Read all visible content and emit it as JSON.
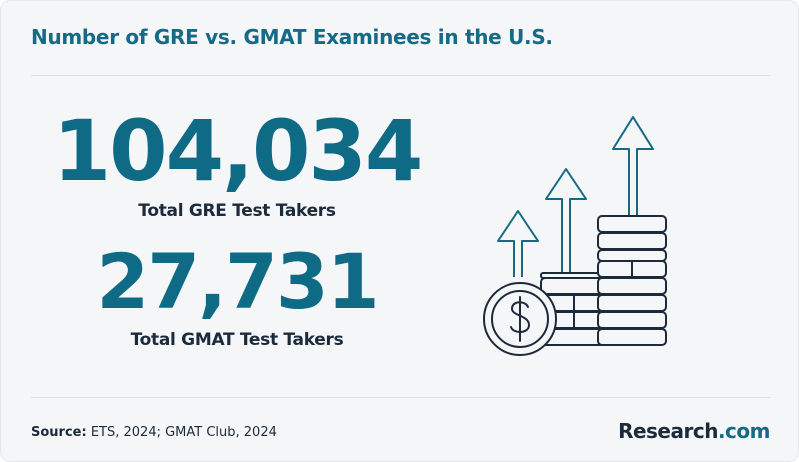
{
  "header": {
    "title": "Number of GRE vs. GMAT Examinees in the U.S."
  },
  "stats": [
    {
      "value": "104,034",
      "label": "Total GRE Test Takers"
    },
    {
      "value": "27,731",
      "label": "Total GMAT Test Takers"
    }
  ],
  "footer": {
    "source_label": "Source:",
    "source_text": "ETS, 2024; GMAT Club, 2024",
    "brand_name": "Research",
    "brand_suffix": ".com"
  }
}
